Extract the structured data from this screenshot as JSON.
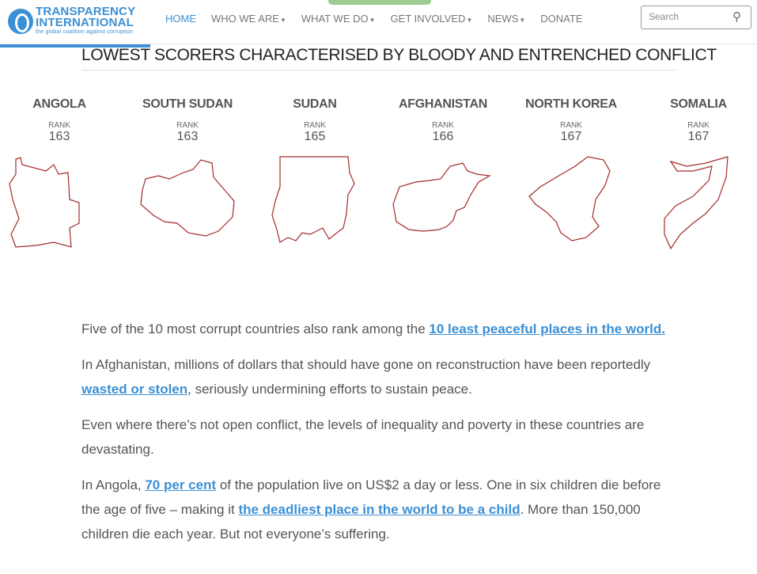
{
  "nav": {
    "logo_line1": "TRANSPARENCY",
    "logo_line2": "INTERNATIONAL",
    "logo_tagline": "the global coalition against corruption",
    "items": [
      {
        "label": "HOME",
        "active": true
      },
      {
        "label": "WHO WE ARE",
        "dropdown": true
      },
      {
        "label": "WHAT WE DO",
        "dropdown": true
      },
      {
        "label": "GET INVOLVED",
        "dropdown": true
      },
      {
        "label": "NEWS",
        "dropdown": true
      },
      {
        "label": "DONATE"
      }
    ],
    "search_placeholder": "Search",
    "search_icon": "magnifier-icon"
  },
  "heading": "LOWEST SCORERS CHARACTERISED BY BLOODY AND ENTRENCHED CONFLICT",
  "rank_label": "RANK",
  "outline_color": "#a52a2a",
  "countries": [
    {
      "name": "ANGOLA",
      "rank": "163"
    },
    {
      "name": "SOUTH SUDAN",
      "rank": "163"
    },
    {
      "name": "SUDAN",
      "rank": "165"
    },
    {
      "name": "AFGHANISTAN",
      "rank": "166"
    },
    {
      "name": "NORTH KOREA",
      "rank": "167"
    },
    {
      "name": "SOMALIA",
      "rank": "167"
    }
  ],
  "paragraphs": {
    "p1": {
      "t1": "Five of the 10 most corrupt countries also rank among the ",
      "link": "10 least peaceful places in the world."
    },
    "p2": {
      "t1": "In Afghanistan, millions of dollars that should have gone on reconstruction have been reportedly ",
      "link": "wasted or stolen",
      "t2": ", seriously undermining efforts to sustain peace."
    },
    "p3": {
      "t1": "Even where there’s not open conflict, the levels of inequality and poverty in these countries are devastating."
    },
    "p4": {
      "t1": "In Angola, ",
      "link1": "70 per cent",
      "t2": " of the population live on US$2 a day or less. One in six children die before the age of five – making it ",
      "link2": "the deadliest place in the world to be a child",
      "t3": ". More than 150,000 children die each year. But not everyone’s suffering."
    }
  }
}
